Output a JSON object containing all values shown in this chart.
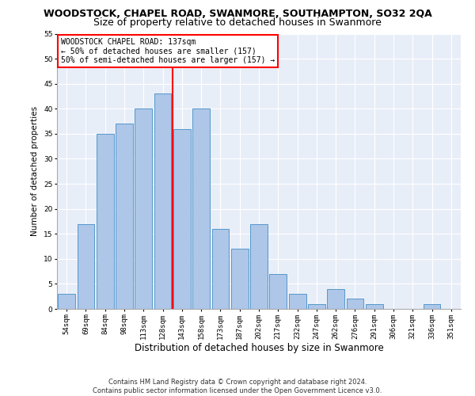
{
  "title": "WOODSTOCK, CHAPEL ROAD, SWANMORE, SOUTHAMPTON, SO32 2QA",
  "subtitle": "Size of property relative to detached houses in Swanmore",
  "xlabel": "Distribution of detached houses by size in Swanmore",
  "ylabel": "Number of detached properties",
  "categories": [
    "54sqm",
    "69sqm",
    "84sqm",
    "98sqm",
    "113sqm",
    "128sqm",
    "143sqm",
    "158sqm",
    "173sqm",
    "187sqm",
    "202sqm",
    "217sqm",
    "232sqm",
    "247sqm",
    "262sqm",
    "276sqm",
    "291sqm",
    "306sqm",
    "321sqm",
    "336sqm",
    "351sqm"
  ],
  "values": [
    3,
    17,
    35,
    37,
    40,
    43,
    36,
    40,
    16,
    12,
    17,
    7,
    3,
    1,
    4,
    2,
    1,
    0,
    0,
    1,
    0
  ],
  "bar_color": "#aec6e8",
  "bar_edge_color": "#5599cc",
  "vline_color": "red",
  "annotation_lines": [
    "WOODSTOCK CHAPEL ROAD: 137sqm",
    "← 50% of detached houses are smaller (157)",
    "50% of semi-detached houses are larger (157) →"
  ],
  "annotation_box_color": "white",
  "annotation_box_edge": "red",
  "ylim": [
    0,
    55
  ],
  "yticks": [
    0,
    5,
    10,
    15,
    20,
    25,
    30,
    35,
    40,
    45,
    50,
    55
  ],
  "bg_color": "#e8eef8",
  "footer1": "Contains HM Land Registry data © Crown copyright and database right 2024.",
  "footer2": "Contains public sector information licensed under the Open Government Licence v3.0.",
  "title_fontsize": 9,
  "subtitle_fontsize": 9,
  "xlabel_fontsize": 8.5,
  "ylabel_fontsize": 7.5,
  "tick_fontsize": 6.5,
  "annotation_fontsize": 7,
  "footer_fontsize": 6
}
